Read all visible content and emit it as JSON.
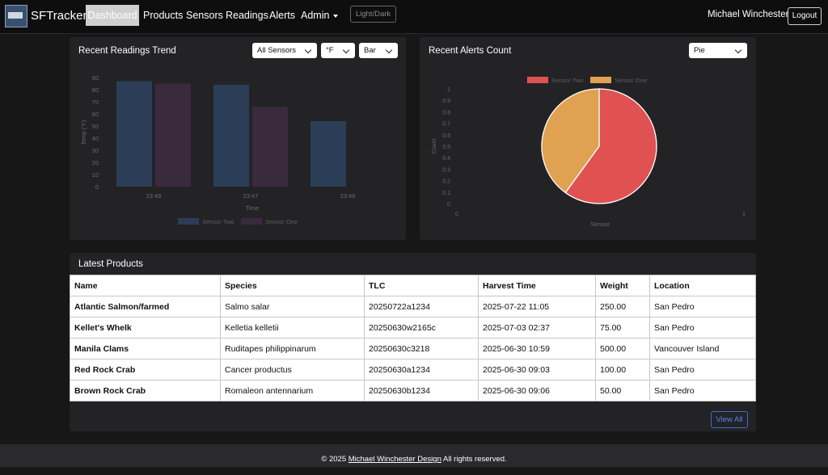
{
  "nav": {
    "brand": "SFTracker",
    "items": [
      "Dashboard",
      "Products",
      "Sensors",
      "Readings",
      "Alerts",
      "Admin"
    ],
    "theme_toggle": "Light/Dark",
    "user": "Michael Winchester",
    "logout": "Logout"
  },
  "readings_card": {
    "title": "Recent Readings Trend",
    "filters": {
      "sensor": "All Sensors",
      "unit": "°F",
      "chart_type": "Bar"
    }
  },
  "alerts_card": {
    "title": "Recent Alerts Count",
    "filters": {
      "chart_type": "Pie"
    }
  },
  "chart_data": [
    {
      "type": "bar",
      "xlabel": "Time",
      "ylabel": "Temp (°F)",
      "ylim": [
        0,
        90
      ],
      "yticks": [
        0,
        10,
        20,
        30,
        40,
        50,
        60,
        70,
        80,
        90
      ],
      "categories": [
        "23:49",
        "23:47",
        "23:45"
      ],
      "series": [
        {
          "name": "Sensor Two",
          "color": "#2c3e57",
          "values": [
            87,
            84,
            54
          ]
        },
        {
          "name": "Sensor One",
          "color": "#3a2a3e",
          "values": [
            85,
            66,
            null
          ]
        }
      ],
      "legend": "bottom"
    },
    {
      "type": "pie",
      "xlabel": "Sensor",
      "ylabel": "Count",
      "yticks": [
        "0",
        "0.1",
        "0.2",
        "0.3",
        "0.4",
        "0.5",
        "0.6",
        "0.7",
        "0.8",
        "0.9",
        "1"
      ],
      "xticks": [
        "0",
        "1"
      ],
      "slices": [
        {
          "name": "Sensor Two",
          "value": 0.6,
          "color": "#e05152"
        },
        {
          "name": "Sensor One",
          "value": 0.4,
          "color": "#e0a150"
        }
      ],
      "legend": "top"
    }
  ],
  "products": {
    "title": "Latest Products",
    "columns": [
      "Name",
      "Species",
      "TLC",
      "Harvest Time",
      "Weight",
      "Location"
    ],
    "rows": [
      [
        "Atlantic Salmon/farmed",
        "Salmo salar",
        "20250722a1234",
        "2025-07-22 11:05",
        "250.00",
        "San Pedro"
      ],
      [
        "Kellet's Whelk",
        "Kelletia kelletii",
        "20250630w2165c",
        "2025-07-03 02:37",
        "75.00",
        "San Pedro"
      ],
      [
        "Manila Clams",
        "Ruditapes philippinarum",
        "20250630c3218",
        "2025-06-30 10:59",
        "500.00",
        "Vancouver Island"
      ],
      [
        "Red Rock Crab",
        "Cancer productus",
        "20250630a1234",
        "2025-06-30 09:03",
        "100.00",
        "San Pedro"
      ],
      [
        "Brown Rock Crab",
        "Romaleon antennarium",
        "20250630b1234",
        "2025-06-30 09:06",
        "50.00",
        "San Pedro"
      ]
    ],
    "view_all": "View All"
  },
  "footer": {
    "prefix": "© 2025",
    "link": "Michael Winchester Design",
    "suffix": "All rights reserved."
  }
}
